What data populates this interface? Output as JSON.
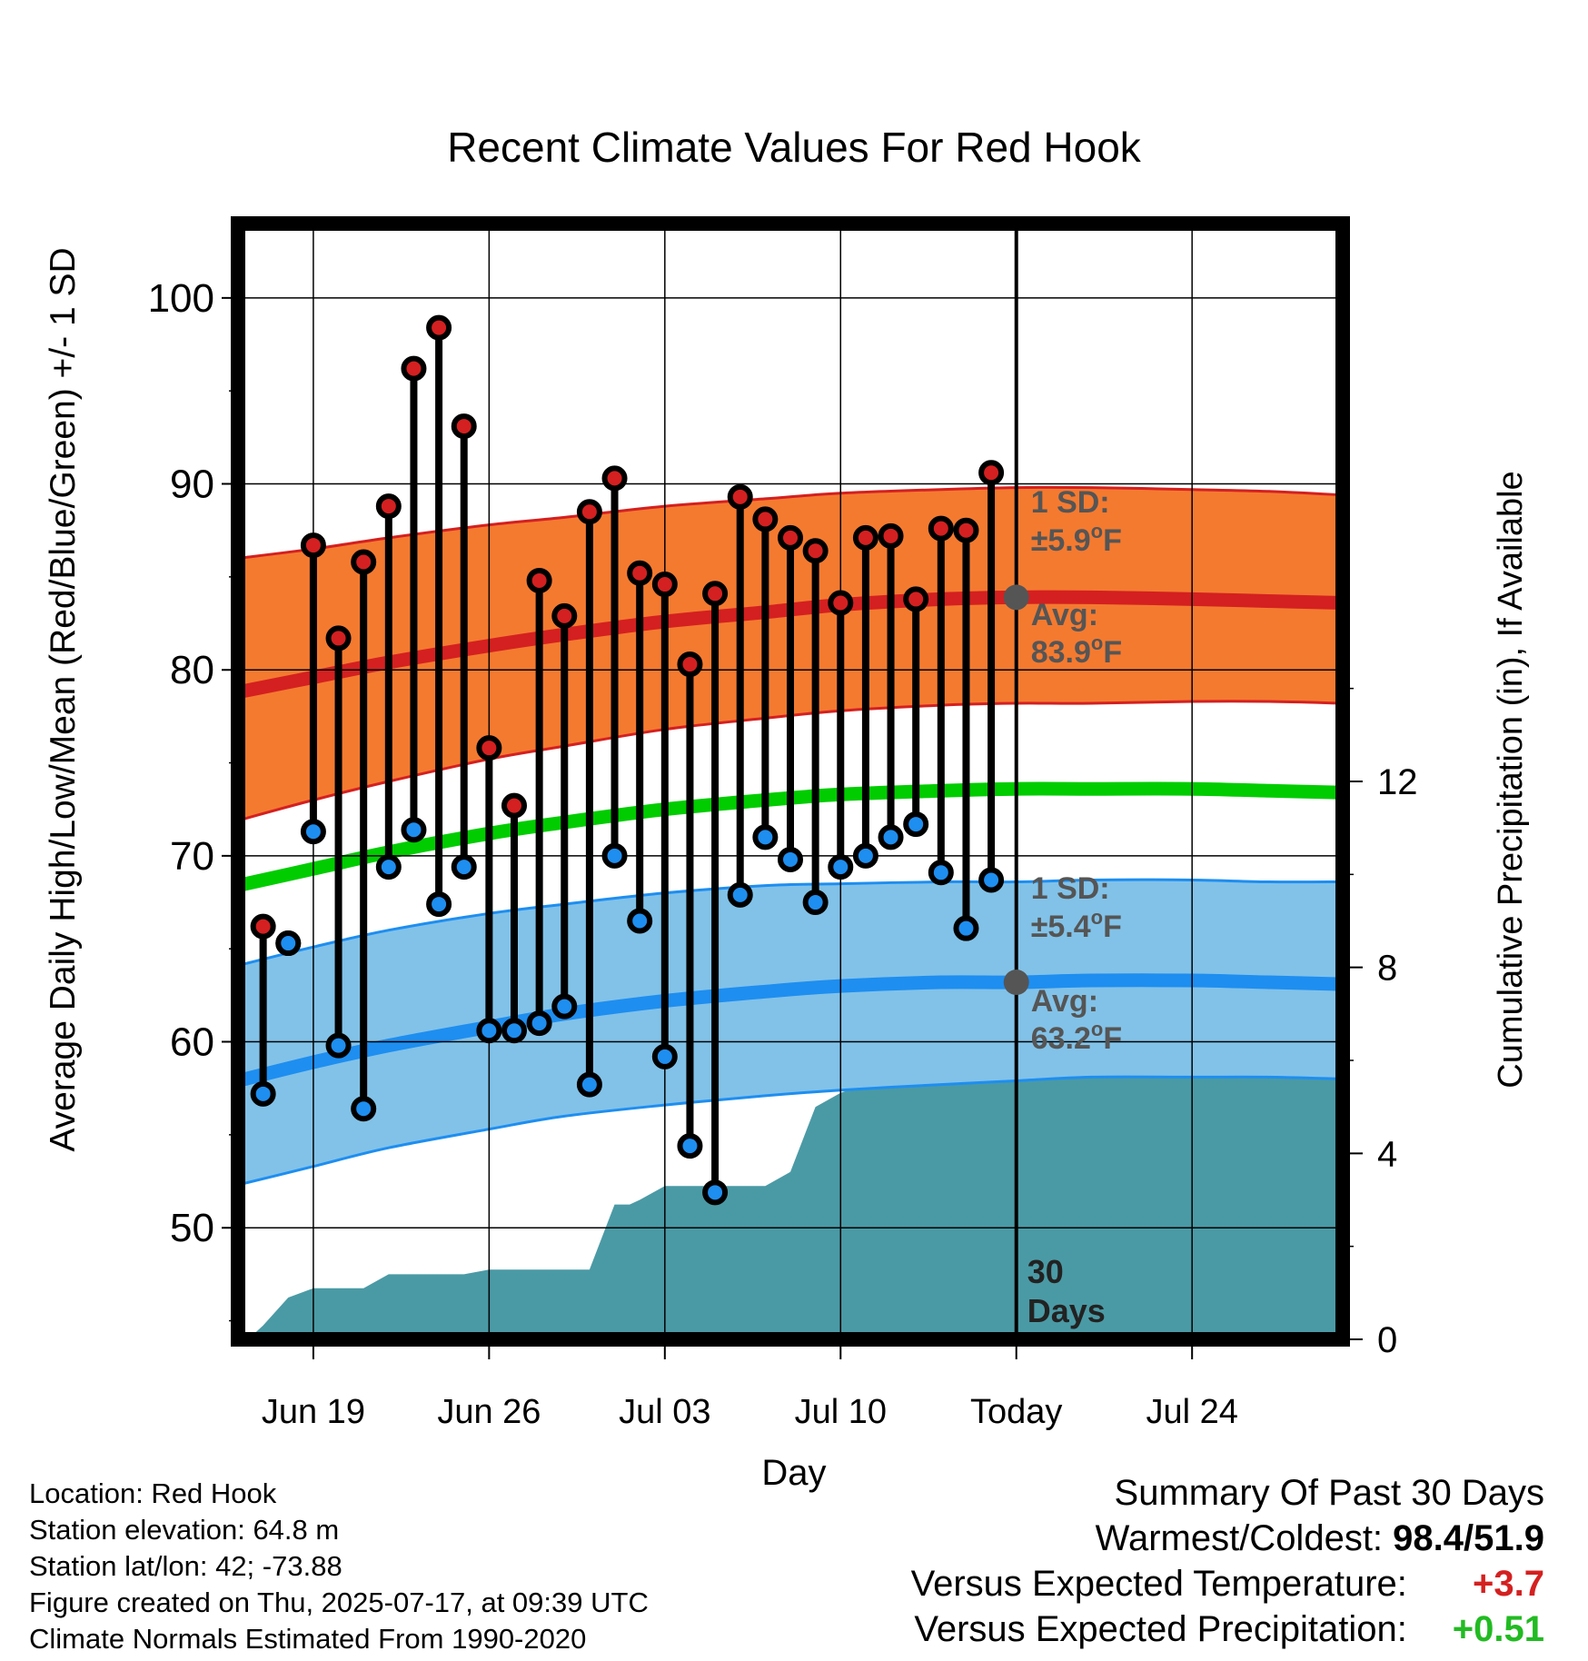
{
  "chart_data": {
    "type": "line",
    "title": "Recent Climate Values For Red Hook",
    "xlabel": "Day",
    "ylabel": "Average Daily High/Low/Mean (Red/Blue/Green) +/- 1 SD",
    "y2label": "Cumulative Precipitation (in), If Available",
    "ylim": [
      44,
      104
    ],
    "y2lim": [
      0,
      24
    ],
    "yticks": [
      50,
      60,
      70,
      80,
      90,
      100
    ],
    "y2ticks": [
      0,
      4,
      8,
      12
    ],
    "xlim": [
      -3,
      41
    ],
    "xticks": [
      {
        "day": 0,
        "label": "Jun 19"
      },
      {
        "day": 7,
        "label": "Jun 26"
      },
      {
        "day": 14,
        "label": "Jul 03"
      },
      {
        "day": 21,
        "label": "Jul 10"
      },
      {
        "day": 28,
        "label": "Today"
      },
      {
        "day": 35,
        "label": "Jul 24"
      }
    ],
    "today_day": 28,
    "days": [
      -2,
      -1,
      0,
      1,
      2,
      3,
      4,
      5,
      6,
      7,
      8,
      9,
      10,
      11,
      12,
      13,
      14,
      15,
      16,
      17,
      18,
      19,
      20,
      21,
      22,
      23,
      24,
      25,
      26,
      27
    ],
    "highs": [
      66.2,
      65.3,
      86.7,
      81.7,
      85.8,
      88.8,
      96.2,
      98.4,
      93.1,
      75.8,
      72.7,
      84.8,
      82.9,
      88.5,
      90.3,
      85.2,
      84.6,
      80.3,
      84.1,
      89.3,
      88.1,
      87.1,
      86.4,
      83.6,
      87.1,
      87.2,
      83.8,
      87.6,
      87.5,
      90.6
    ],
    "lows": [
      57.2,
      65.3,
      71.3,
      59.8,
      56.4,
      69.4,
      71.4,
      67.4,
      69.4,
      60.6,
      60.6,
      61.0,
      61.9,
      57.7,
      70.0,
      66.5,
      59.2,
      54.4,
      51.9,
      67.9,
      71.0,
      69.8,
      67.5,
      69.4,
      70.0,
      71.0,
      71.7,
      69.1,
      66.1,
      68.7
    ],
    "normals": {
      "days": [
        -3,
        0,
        3,
        7,
        10,
        14,
        18,
        21,
        25,
        28,
        31,
        35,
        38,
        41
      ],
      "high_avg": [
        78.8,
        79.6,
        80.4,
        81.3,
        81.9,
        82.6,
        83.1,
        83.5,
        83.8,
        83.9,
        83.9,
        83.8,
        83.7,
        83.6
      ],
      "high_sd_upper": [
        86.0,
        86.5,
        87.1,
        87.8,
        88.2,
        88.8,
        89.2,
        89.5,
        89.7,
        89.8,
        89.8,
        89.7,
        89.6,
        89.4
      ],
      "high_sd_lower": [
        71.9,
        73.0,
        74.0,
        75.2,
        75.9,
        76.8,
        77.4,
        77.8,
        78.1,
        78.2,
        78.2,
        78.3,
        78.3,
        78.2
      ],
      "mean": [
        68.4,
        69.3,
        70.2,
        71.2,
        71.8,
        72.5,
        73.0,
        73.3,
        73.5,
        73.6,
        73.6,
        73.6,
        73.5,
        73.4
      ],
      "low_avg": [
        57.9,
        58.9,
        59.8,
        60.8,
        61.5,
        62.2,
        62.7,
        63.0,
        63.2,
        63.2,
        63.3,
        63.3,
        63.2,
        63.1
      ],
      "low_sd_upper": [
        64.1,
        65.1,
        66.0,
        66.9,
        67.4,
        68.0,
        68.4,
        68.5,
        68.6,
        68.6,
        68.7,
        68.7,
        68.6,
        68.6
      ],
      "low_sd_lower": [
        52.3,
        53.3,
        54.3,
        55.3,
        56.0,
        56.6,
        57.1,
        57.4,
        57.7,
        57.9,
        58.1,
        58.1,
        58.1,
        58.0
      ]
    },
    "precip_days": [
      -2.6,
      -2,
      -1,
      0,
      1,
      2,
      3,
      4,
      5,
      6,
      7,
      8,
      9,
      10,
      11,
      12,
      12.6,
      13,
      14,
      15,
      16,
      17,
      18,
      19,
      20,
      21,
      22,
      23,
      24,
      25,
      26,
      27,
      28,
      41
    ],
    "precip_cum": [
      0.0,
      0.3,
      0.9,
      1.1,
      1.1,
      1.1,
      1.4,
      1.4,
      1.4,
      1.4,
      1.5,
      1.5,
      1.5,
      1.5,
      1.5,
      2.9,
      2.9,
      3.0,
      3.3,
      3.3,
      3.3,
      3.3,
      3.3,
      3.6,
      5.0,
      5.3,
      5.5,
      5.5,
      5.5,
      6.9,
      6.9,
      6.9,
      6.9,
      6.9
    ],
    "annotations": {
      "high_sd_label": "1 SD:",
      "high_sd_value": "±5.9",
      "high_avg_label": "Avg:",
      "high_avg_value": "83.9",
      "low_sd_label": "1 SD:",
      "low_sd_value": "±5.4",
      "low_avg_label": "Avg:",
      "low_avg_value": "63.2",
      "unit_sup": "o",
      "unit_letter": "F",
      "days_line1": "30",
      "days_line2": "Days"
    },
    "colors": {
      "high": "#d42020",
      "high_band": "#f47a30",
      "low": "#1e8ef0",
      "low_band": "#82c2e8",
      "mean": "#00cc00",
      "precip": "#4a9aa5",
      "annotation": "#555555"
    }
  },
  "info": {
    "location": "Location: Red Hook",
    "elevation": "Station elevation: 64.8 m",
    "latlon": "Station lat/lon: 42; -73.88",
    "created": "Figure created on Thu, 2025-07-17, at 09:39 UTC",
    "normals": "Climate Normals Estimated From 1990-2020"
  },
  "summary": {
    "title": "Summary Of Past 30 Days",
    "warm_cold_label": "Warmest/Coldest:",
    "warm_cold_value": "98.4/51.9",
    "temp_label": "Versus Expected Temperature:",
    "temp_value": "+3.7",
    "temp_color": "#d42020",
    "precip_label": "Versus Expected Precipitation:",
    "precip_value": "+0.51",
    "precip_color": "#22bb22"
  }
}
